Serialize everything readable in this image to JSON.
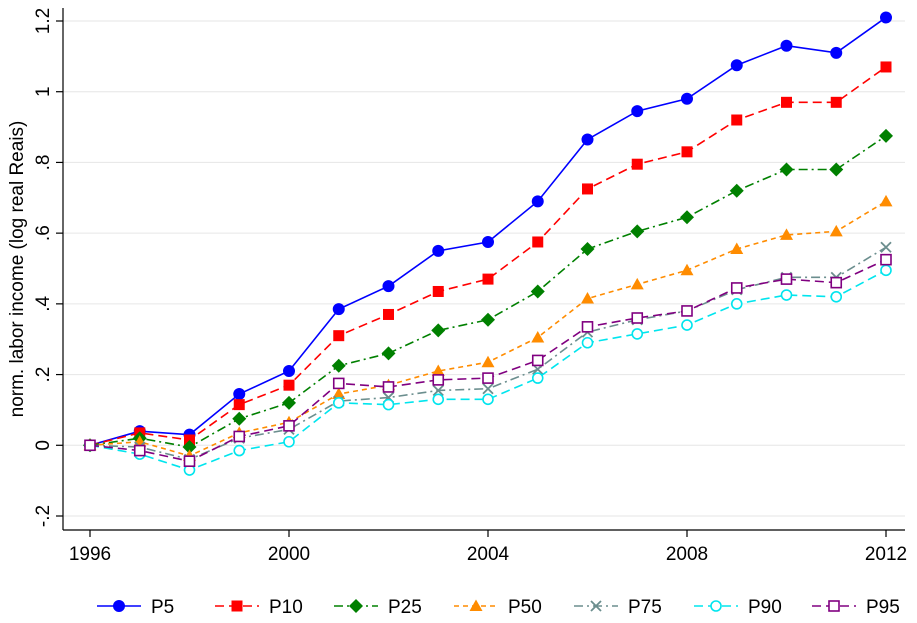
{
  "chart_data": {
    "type": "line",
    "title": "",
    "xlabel": "",
    "ylabel": "norm. labor income (log real Reais)",
    "x": [
      1996,
      1997,
      1998,
      1999,
      2000,
      2001,
      2002,
      2003,
      2004,
      2005,
      2006,
      2007,
      2008,
      2009,
      2010,
      2011,
      2012
    ],
    "xlim": [
      1996,
      2012
    ],
    "ylim": [
      -0.2,
      1.2
    ],
    "x_ticks": [
      1996,
      2000,
      2004,
      2008,
      2012
    ],
    "y_ticks": [
      -0.2,
      0,
      0.2,
      0.4,
      0.6,
      0.8,
      1,
      1.2
    ],
    "y_tick_labels": [
      "-.2",
      "0",
      ".2",
      ".4",
      ".6",
      ".8",
      "1",
      "1.2"
    ],
    "grid": "horizontal",
    "legend_position": "bottom",
    "series": [
      {
        "name": "P5",
        "color": "#0000ff",
        "dash": "solid",
        "marker": "circle-filled",
        "values": [
          0,
          0.04,
          0.03,
          0.145,
          0.21,
          0.385,
          0.45,
          0.55,
          0.575,
          0.69,
          0.865,
          0.945,
          0.98,
          1.075,
          1.13,
          1.11,
          1.21
        ]
      },
      {
        "name": "P10",
        "color": "#ff0000",
        "dash": "longdash",
        "marker": "square-filled",
        "values": [
          0,
          0.035,
          0.015,
          0.115,
          0.17,
          0.31,
          0.37,
          0.435,
          0.47,
          0.575,
          0.725,
          0.795,
          0.83,
          0.92,
          0.97,
          0.97,
          1.07
        ]
      },
      {
        "name": "P25",
        "color": "#008000",
        "dash": "dashdot",
        "marker": "diamond-filled",
        "values": [
          0,
          0.02,
          -0.005,
          0.075,
          0.12,
          0.225,
          0.26,
          0.325,
          0.355,
          0.435,
          0.555,
          0.605,
          0.645,
          0.72,
          0.78,
          0.78,
          0.875
        ]
      },
      {
        "name": "P50",
        "color": "#ff8c00",
        "dash": "shortdash",
        "marker": "triangle-filled",
        "values": [
          0,
          0.01,
          -0.03,
          0.035,
          0.065,
          0.145,
          0.17,
          0.21,
          0.235,
          0.305,
          0.415,
          0.455,
          0.495,
          0.555,
          0.595,
          0.605,
          0.69
        ]
      },
      {
        "name": "P75",
        "color": "#6b8e8e",
        "dash": "dashdot",
        "marker": "x",
        "values": [
          0,
          -0.005,
          -0.04,
          0.02,
          0.045,
          0.125,
          0.135,
          0.155,
          0.16,
          0.215,
          0.32,
          0.355,
          0.38,
          0.44,
          0.475,
          0.475,
          0.56
        ]
      },
      {
        "name": "P90",
        "color": "#00e5ee",
        "dash": "longdash",
        "marker": "circle-hollow",
        "values": [
          0,
          -0.025,
          -0.07,
          -0.015,
          0.01,
          0.12,
          0.115,
          0.13,
          0.13,
          0.19,
          0.29,
          0.315,
          0.34,
          0.4,
          0.425,
          0.42,
          0.495
        ]
      },
      {
        "name": "P95",
        "color": "#800080",
        "dash": "longdash",
        "marker": "square-hollow",
        "values": [
          0,
          -0.015,
          -0.045,
          0.025,
          0.055,
          0.175,
          0.165,
          0.185,
          0.19,
          0.24,
          0.335,
          0.36,
          0.38,
          0.445,
          0.47,
          0.46,
          0.525
        ]
      }
    ]
  }
}
